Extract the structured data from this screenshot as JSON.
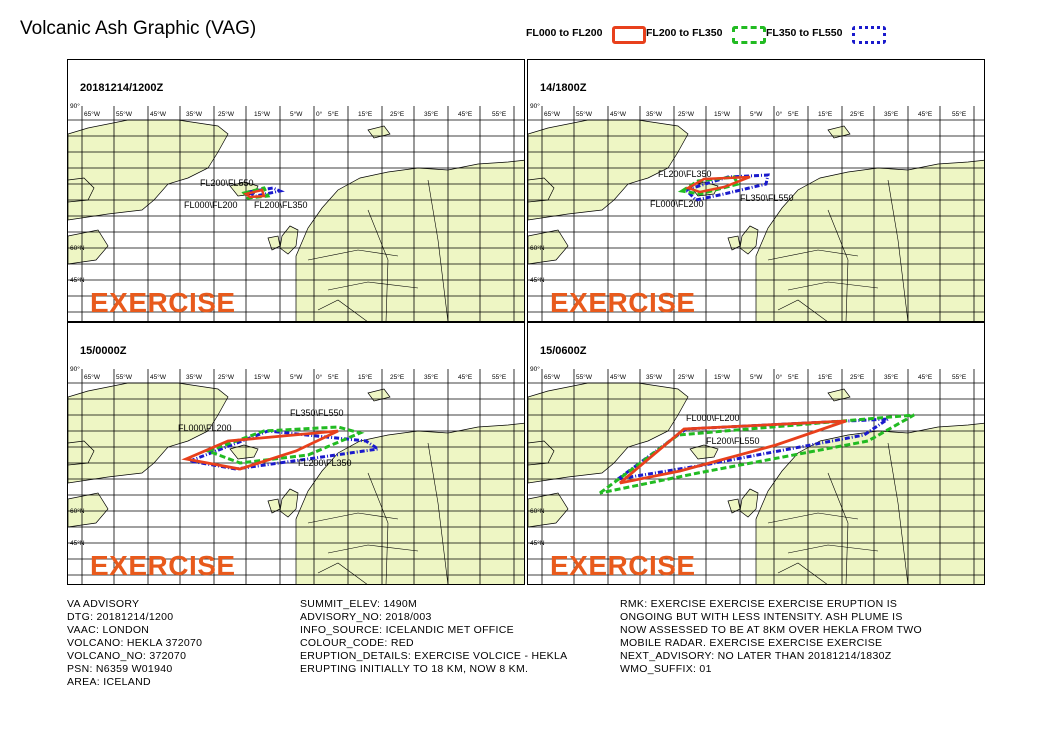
{
  "title": "Volcanic Ash Graphic (VAG)",
  "legend": [
    {
      "label": "FL000 to FL200",
      "color": "#e8401c"
    },
    {
      "label": "FL200 to FL350",
      "color": "#22bb22"
    },
    {
      "label": "FL350 to FL550",
      "color": "#1a1acc"
    }
  ],
  "lon_labels": [
    "65°W",
    "55°W",
    "45°W",
    "35°W",
    "25°W",
    "15°W",
    "5°W",
    "0°",
    "5°E",
    "15°E",
    "25°E",
    "35°E",
    "45°E",
    "55°E"
  ],
  "lat_labels": [
    "90°",
    "60°N",
    "45°N"
  ],
  "exercise_label": "EXERCISE",
  "panels": [
    {
      "time": "20181214/1200Z",
      "labels": [
        "FL200\\FL550",
        "FL000\\FL200",
        "FL200\\FL350"
      ]
    },
    {
      "time": "14/1800Z",
      "labels": [
        "FL200\\FL350",
        "FL000\\FL200",
        "FL350\\FL550"
      ]
    },
    {
      "time": "15/0000Z",
      "labels": [
        "FL000\\FL200",
        "FL350\\FL550",
        "FL200\\FL350"
      ]
    },
    {
      "time": "15/0600Z",
      "labels": [
        "FL000\\FL200",
        "FL200\\FL550"
      ]
    }
  ],
  "info_col1": "VA ADVISORY\nDTG: 20181214/1200\nVAAC: LONDON\nVOLCANO: HEKLA 372070\nVOLCANO_NO: 372070\nPSN: N6359 W01940\nAREA: ICELAND",
  "info_col2": "SUMMIT_ELEV: 1490M\nADVISORY_NO: 2018/003\nINFO_SOURCE: ICELANDIC MET OFFICE\nCOLOUR_CODE: RED\nERUPTION_DETAILS: EXERCISE VOLCICE - HEKLA\nERUPTING INITIALLY TO 18 KM, NOW 8 KM.",
  "info_col3": "RMK: EXERCISE EXERCISE EXERCISE ERUPTION IS\nONGOING BUT WITH LESS INTENSITY. ASH PLUME IS\nNOW ASSESSED TO BE AT 8KM OVER HEKLA FROM TWO\nMOBILE RADAR. EXERCISE EXERCISE EXERCISE\nNEXT_ADVISORY: NO LATER THAN 20181214/1830Z\nWMO_SUFFIX: 01"
}
